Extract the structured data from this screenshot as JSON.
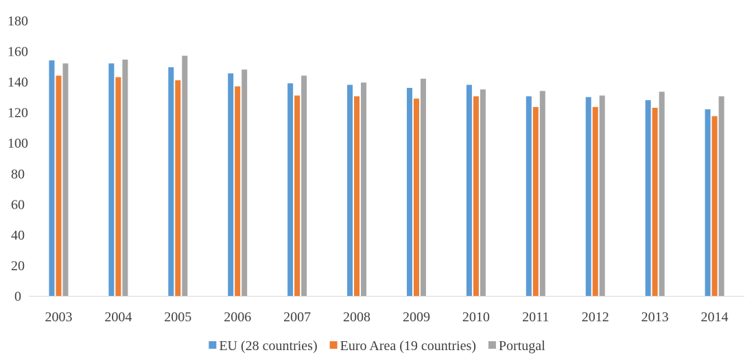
{
  "chart_data": {
    "type": "bar",
    "title": "",
    "xlabel": "",
    "ylabel": "",
    "ylim": [
      0,
      180
    ],
    "yticks": [
      0,
      20,
      40,
      60,
      80,
      100,
      120,
      140,
      160,
      180
    ],
    "grid": false,
    "legend_position": "bottom",
    "categories": [
      "2003",
      "2004",
      "2005",
      "2006",
      "2007",
      "2008",
      "2009",
      "2010",
      "2011",
      "2012",
      "2013",
      "2014"
    ],
    "series": [
      {
        "name": "EU (28 countries)",
        "color": "#5B9BD5",
        "values": [
          154,
          152,
          149.5,
          145.5,
          139,
          138,
          136,
          138,
          130.5,
          130,
          128,
          122
        ]
      },
      {
        "name": "Euro Area (19 countries)",
        "color": "#ED7D31",
        "values": [
          144,
          143,
          141,
          137,
          131,
          130.5,
          129,
          130.5,
          123.5,
          123.5,
          123,
          117.5
        ]
      },
      {
        "name": "Portugal",
        "color": "#A5A5A5",
        "values": [
          152,
          154.5,
          157,
          148,
          144,
          139.5,
          142,
          135,
          134,
          131,
          133.5,
          130.5
        ]
      }
    ]
  }
}
